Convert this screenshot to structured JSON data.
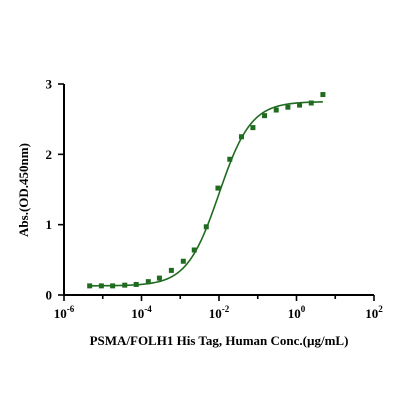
{
  "chart_data": {
    "type": "scatter",
    "title": "",
    "xlabel": "PSMA/FOLH1 His Tag, Human Conc.(µg/mL)",
    "ylabel": "Abs.(OD.450nm)",
    "xscale": "log10",
    "xlim": [
      1e-06,
      100
    ],
    "ylim": [
      0,
      3
    ],
    "grid": false,
    "legend": "none",
    "x_ticks": [
      {
        "value": 1e-06,
        "base": "10",
        "exp": "-6"
      },
      {
        "value": 0.0001,
        "base": "10",
        "exp": "-4"
      },
      {
        "value": 0.01,
        "base": "10",
        "exp": "-2"
      },
      {
        "value": 1,
        "base": "10",
        "exp": "0"
      },
      {
        "value": 100,
        "base": "10",
        "exp": "2"
      }
    ],
    "y_ticks": [
      {
        "value": 0,
        "label": "0"
      },
      {
        "value": 1,
        "label": "1"
      },
      {
        "value": 2,
        "label": "2"
      },
      {
        "value": 3,
        "label": "3"
      }
    ],
    "series": [
      {
        "color": "#1f6b1f",
        "marker": "square",
        "points": [
          {
            "x": 4.6e-06,
            "y": 0.13
          },
          {
            "x": 9.2e-06,
            "y": 0.13
          },
          {
            "x": 1.8e-05,
            "y": 0.13
          },
          {
            "x": 3.7e-05,
            "y": 0.14
          },
          {
            "x": 7.3e-05,
            "y": 0.15
          },
          {
            "x": 0.00015,
            "y": 0.19
          },
          {
            "x": 0.00029,
            "y": 0.24
          },
          {
            "x": 0.00059,
            "y": 0.35
          },
          {
            "x": 0.0012,
            "y": 0.48
          },
          {
            "x": 0.0023,
            "y": 0.64
          },
          {
            "x": 0.0047,
            "y": 0.97
          },
          {
            "x": 0.0094,
            "y": 1.52
          },
          {
            "x": 0.019,
            "y": 1.93
          },
          {
            "x": 0.038,
            "y": 2.25
          },
          {
            "x": 0.075,
            "y": 2.38
          },
          {
            "x": 0.15,
            "y": 2.55
          },
          {
            "x": 0.3,
            "y": 2.63
          },
          {
            "x": 0.6,
            "y": 2.67
          },
          {
            "x": 1.2,
            "y": 2.7
          },
          {
            "x": 2.4,
            "y": 2.73
          },
          {
            "x": 4.8,
            "y": 2.85
          }
        ],
        "fit": {
          "type": "4PL",
          "bottom": 0.13,
          "top": 2.75,
          "ec50": 0.01,
          "hill": 1.05,
          "x_range": [
            4.6e-06,
            4.8
          ]
        }
      }
    ]
  }
}
